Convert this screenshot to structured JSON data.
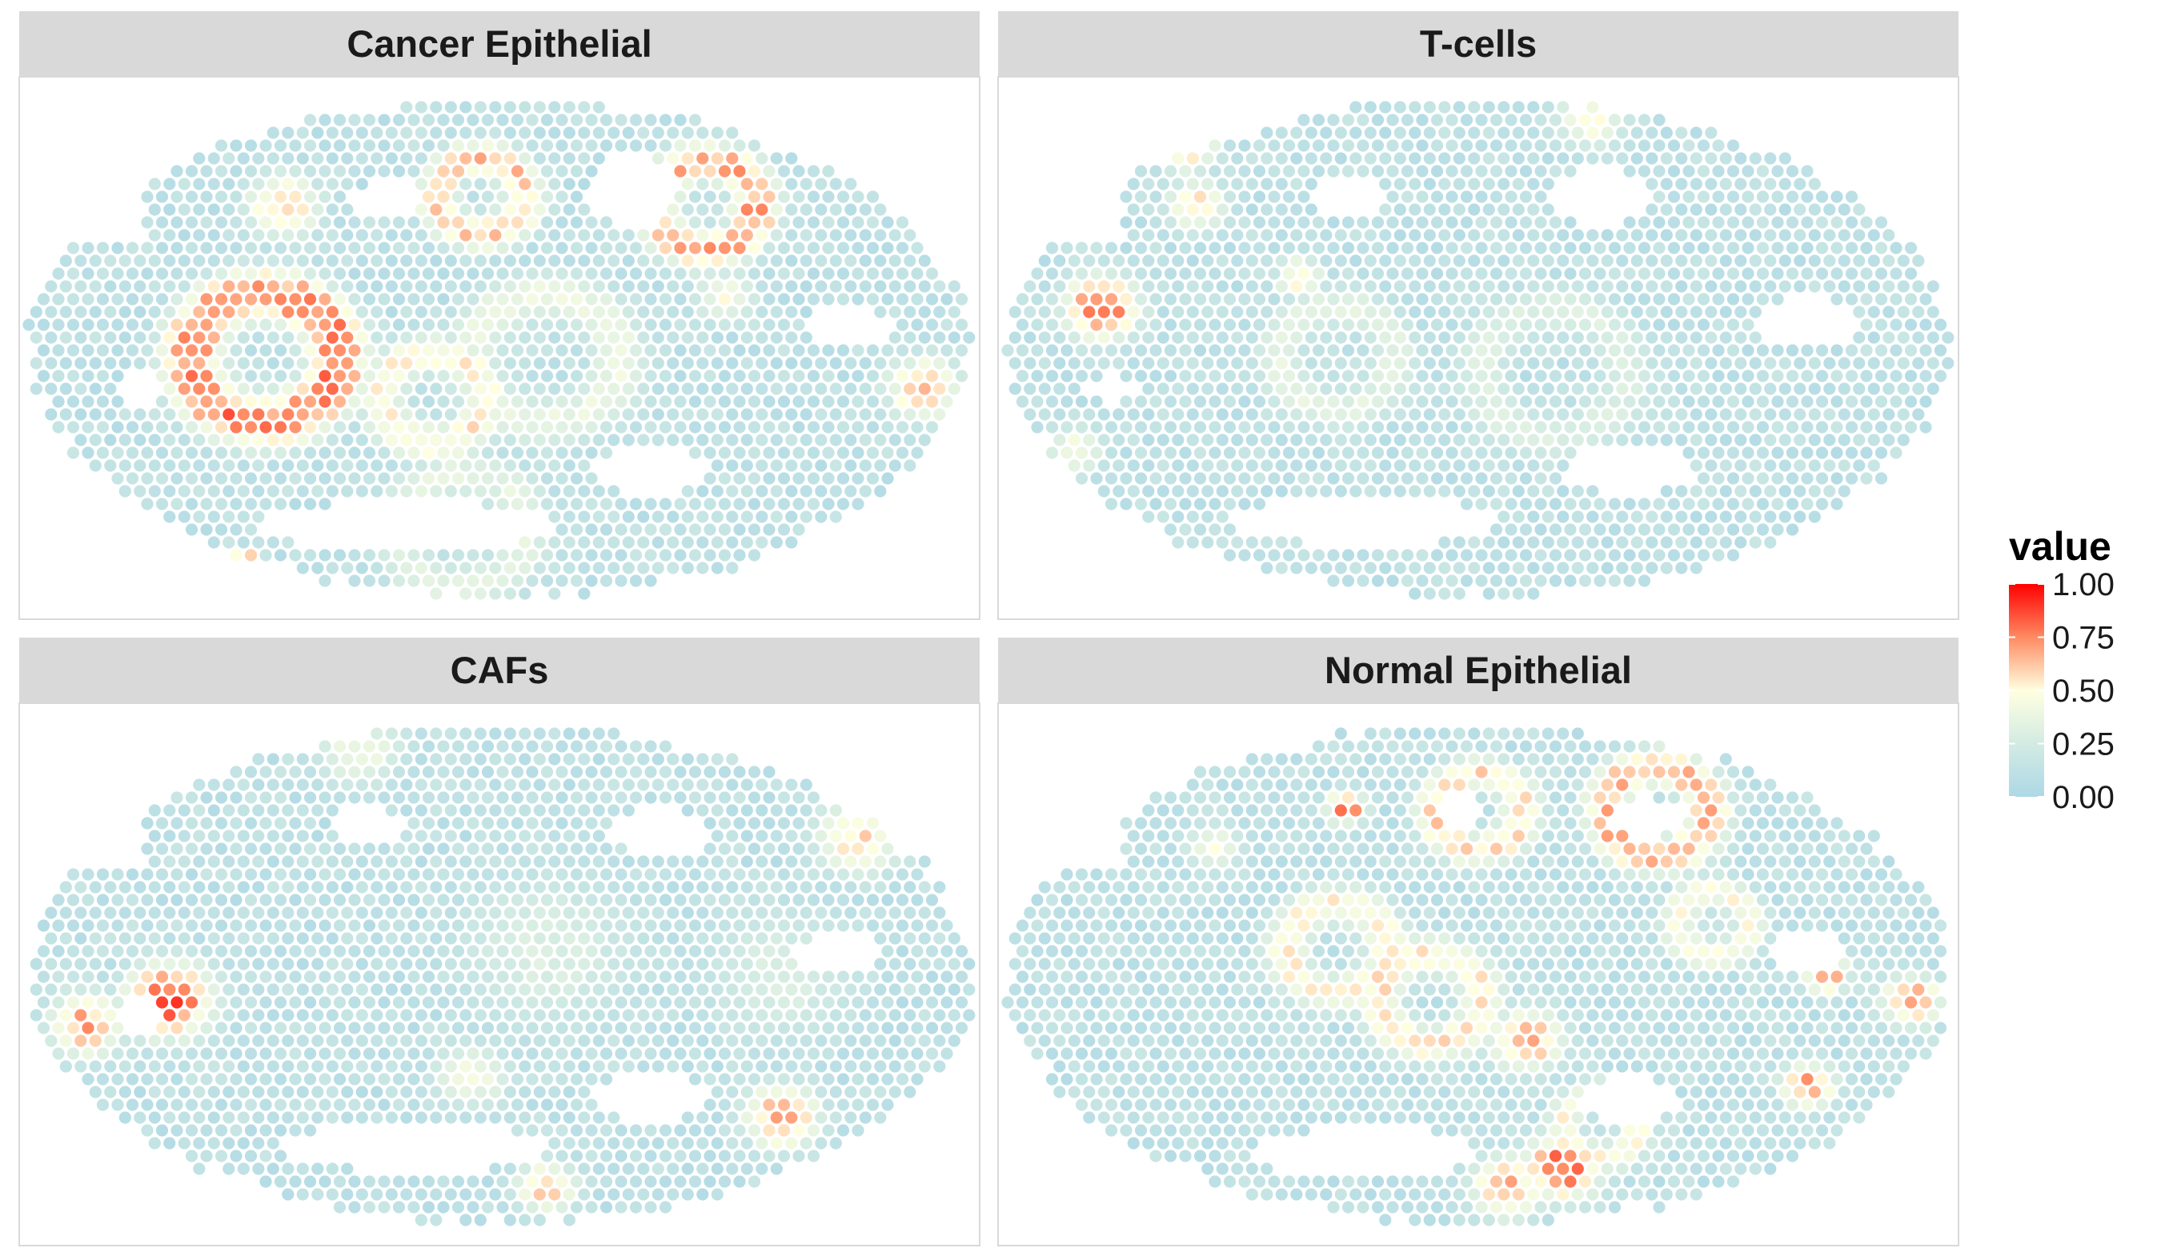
{
  "chart_data": {
    "type": "heatmap",
    "subtype": "spatial spot map (small multiples, 2x2 facets)",
    "facets": [
      {
        "title": "Cancer Epithelial",
        "hotspots": [
          {
            "x": 0.25,
            "y": 0.52,
            "shape": "ring",
            "r": 0.1,
            "value": 0.9
          },
          {
            "x": 0.27,
            "y": 0.22,
            "shape": "blob",
            "r": 0.05,
            "value": 0.72
          },
          {
            "x": 0.48,
            "y": 0.2,
            "shape": "ring",
            "r": 0.06,
            "value": 0.7
          },
          {
            "x": 0.72,
            "y": 0.22,
            "shape": "ring",
            "r": 0.07,
            "value": 0.78
          },
          {
            "x": 0.77,
            "y": 0.23,
            "shape": "blob",
            "r": 0.03,
            "value": 0.95
          },
          {
            "x": 0.43,
            "y": 0.6,
            "shape": "ring",
            "r": 0.07,
            "value": 0.6
          },
          {
            "x": 0.55,
            "y": 0.52,
            "shape": "ring",
            "r": 0.1,
            "value": 0.45
          },
          {
            "x": 0.95,
            "y": 0.58,
            "shape": "blob",
            "r": 0.05,
            "value": 0.75
          },
          {
            "x": 0.74,
            "y": 0.4,
            "shape": "blob",
            "r": 0.04,
            "value": 0.55
          },
          {
            "x": 0.46,
            "y": 0.86,
            "shape": "ring",
            "r": 0.09,
            "value": 0.4
          },
          {
            "x": 0.23,
            "y": 0.92,
            "shape": "blob",
            "r": 0.015,
            "value": 1.0
          }
        ],
        "holes": [
          {
            "x": 0.4,
            "y": 0.85,
            "rx": 0.16,
            "ry": 0.05
          },
          {
            "x": 0.66,
            "y": 0.74,
            "rx": 0.06,
            "ry": 0.05
          },
          {
            "x": 0.64,
            "y": 0.19,
            "rx": 0.05,
            "ry": 0.07
          },
          {
            "x": 0.38,
            "y": 0.21,
            "rx": 0.04,
            "ry": 0.04
          },
          {
            "x": 0.87,
            "y": 0.46,
            "rx": 0.05,
            "ry": 0.04
          },
          {
            "x": 0.12,
            "y": 0.58,
            "rx": 0.025,
            "ry": 0.03
          }
        ]
      },
      {
        "title": "T-cells",
        "hotspots": [
          {
            "x": 0.1,
            "y": 0.42,
            "shape": "blob",
            "r": 0.05,
            "value": 0.95
          },
          {
            "x": 0.19,
            "y": 0.1,
            "shape": "blob",
            "r": 0.04,
            "value": 0.8
          },
          {
            "x": 0.2,
            "y": 0.22,
            "shape": "blob",
            "r": 0.04,
            "value": 0.65
          },
          {
            "x": 0.35,
            "y": 0.52,
            "shape": "ring",
            "r": 0.08,
            "value": 0.4
          },
          {
            "x": 0.58,
            "y": 0.55,
            "shape": "ring",
            "r": 0.1,
            "value": 0.35
          },
          {
            "x": 0.62,
            "y": 0.05,
            "shape": "blob",
            "r": 0.05,
            "value": 0.55
          },
          {
            "x": 0.31,
            "y": 0.36,
            "shape": "blob",
            "r": 0.03,
            "value": 0.65
          },
          {
            "x": 0.07,
            "y": 0.7,
            "shape": "blob",
            "r": 0.04,
            "value": 0.5
          }
        ],
        "holes": [
          {
            "x": 0.38,
            "y": 0.84,
            "rx": 0.14,
            "ry": 0.05
          },
          {
            "x": 0.66,
            "y": 0.74,
            "rx": 0.07,
            "ry": 0.05
          },
          {
            "x": 0.85,
            "y": 0.45,
            "rx": 0.05,
            "ry": 0.05
          },
          {
            "x": 0.63,
            "y": 0.2,
            "rx": 0.05,
            "ry": 0.06
          },
          {
            "x": 0.36,
            "y": 0.2,
            "rx": 0.04,
            "ry": 0.04
          },
          {
            "x": 0.11,
            "y": 0.58,
            "rx": 0.025,
            "ry": 0.03
          }
        ]
      },
      {
        "title": "CAFs",
        "hotspots": [
          {
            "x": 0.15,
            "y": 0.55,
            "shape": "blob",
            "r": 0.06,
            "value": 0.97
          },
          {
            "x": 0.06,
            "y": 0.6,
            "shape": "blob",
            "r": 0.05,
            "value": 0.8
          },
          {
            "x": 0.8,
            "y": 0.78,
            "shape": "blob",
            "r": 0.05,
            "value": 0.85
          },
          {
            "x": 0.88,
            "y": 0.23,
            "shape": "blob",
            "r": 0.06,
            "value": 0.65
          },
          {
            "x": 0.55,
            "y": 0.92,
            "shape": "blob",
            "r": 0.04,
            "value": 0.75
          },
          {
            "x": 0.47,
            "y": 0.7,
            "shape": "blob",
            "r": 0.05,
            "value": 0.55
          },
          {
            "x": 0.35,
            "y": 0.06,
            "shape": "blob",
            "r": 0.06,
            "value": 0.5
          },
          {
            "x": 0.55,
            "y": 0.45,
            "shape": "blob",
            "r": 0.14,
            "value": 0.35
          },
          {
            "x": 0.8,
            "y": 0.5,
            "shape": "blob",
            "r": 0.12,
            "value": 0.35
          }
        ],
        "holes": [
          {
            "x": 0.41,
            "y": 0.84,
            "rx": 0.14,
            "ry": 0.05
          },
          {
            "x": 0.66,
            "y": 0.74,
            "rx": 0.06,
            "ry": 0.05
          },
          {
            "x": 0.67,
            "y": 0.22,
            "rx": 0.05,
            "ry": 0.05
          },
          {
            "x": 0.36,
            "y": 0.21,
            "rx": 0.04,
            "ry": 0.04
          },
          {
            "x": 0.86,
            "y": 0.46,
            "rx": 0.05,
            "ry": 0.04
          },
          {
            "x": 0.12,
            "y": 0.58,
            "rx": 0.025,
            "ry": 0.03
          }
        ]
      },
      {
        "title": "Normal Epithelial",
        "hotspots": [
          {
            "x": 0.59,
            "y": 0.88,
            "shape": "blob",
            "r": 0.05,
            "value": 0.98
          },
          {
            "x": 0.53,
            "y": 0.92,
            "shape": "blob",
            "r": 0.05,
            "value": 0.75
          },
          {
            "x": 0.55,
            "y": 0.63,
            "shape": "blob",
            "r": 0.05,
            "value": 0.8
          },
          {
            "x": 0.69,
            "y": 0.18,
            "shape": "ring",
            "r": 0.07,
            "value": 0.75
          },
          {
            "x": 0.5,
            "y": 0.18,
            "shape": "ring",
            "r": 0.06,
            "value": 0.65
          },
          {
            "x": 0.35,
            "y": 0.45,
            "shape": "ring",
            "r": 0.07,
            "value": 0.6
          },
          {
            "x": 0.45,
            "y": 0.55,
            "shape": "ring",
            "r": 0.07,
            "value": 0.62
          },
          {
            "x": 0.36,
            "y": 0.17,
            "shape": "blob",
            "r": 0.025,
            "value": 0.9
          },
          {
            "x": 0.96,
            "y": 0.55,
            "shape": "blob",
            "r": 0.04,
            "value": 0.8
          },
          {
            "x": 0.87,
            "y": 0.5,
            "shape": "blob",
            "r": 0.03,
            "value": 0.8
          },
          {
            "x": 0.85,
            "y": 0.72,
            "shape": "blob",
            "r": 0.035,
            "value": 0.85
          },
          {
            "x": 0.63,
            "y": 0.8,
            "shape": "ring",
            "r": 0.05,
            "value": 0.55
          },
          {
            "x": 0.75,
            "y": 0.4,
            "shape": "ring",
            "r": 0.05,
            "value": 0.55
          },
          {
            "x": 0.22,
            "y": 0.25,
            "shape": "blob",
            "r": 0.04,
            "value": 0.5
          }
        ],
        "holes": [
          {
            "x": 0.38,
            "y": 0.85,
            "rx": 0.12,
            "ry": 0.05
          },
          {
            "x": 0.66,
            "y": 0.75,
            "rx": 0.05,
            "ry": 0.05
          },
          {
            "x": 0.68,
            "y": 0.19,
            "rx": 0.04,
            "ry": 0.04
          },
          {
            "x": 0.48,
            "y": 0.18,
            "rx": 0.03,
            "ry": 0.03
          },
          {
            "x": 0.85,
            "y": 0.45,
            "rx": 0.04,
            "ry": 0.04
          }
        ]
      }
    ],
    "tissue_outline": "ellipse",
    "tissue_notch": {
      "x_max": 0.12,
      "y_max": 0.3
    },
    "color_scale": {
      "title": "value",
      "low": "#ADD8E6",
      "mid": "#FFFFE0",
      "high": "#FF0000",
      "stops": [
        {
          "value": 0.0,
          "color": "#ADD8E6"
        },
        {
          "value": 0.25,
          "color": "#D3EBE3"
        },
        {
          "value": 0.5,
          "color": "#FFFFE0"
        },
        {
          "value": 0.75,
          "color": "#FF8A62"
        },
        {
          "value": 1.0,
          "color": "#FF0000"
        }
      ],
      "limits": [
        0.0,
        1.0
      ],
      "breaks": [
        1.0,
        0.75,
        0.5,
        0.25,
        0.0
      ],
      "labels": [
        "1.00",
        "0.75",
        "0.50",
        "0.25",
        "0.00"
      ]
    },
    "legend_position": "right",
    "xlabel": "",
    "ylabel": "",
    "grid": false
  }
}
